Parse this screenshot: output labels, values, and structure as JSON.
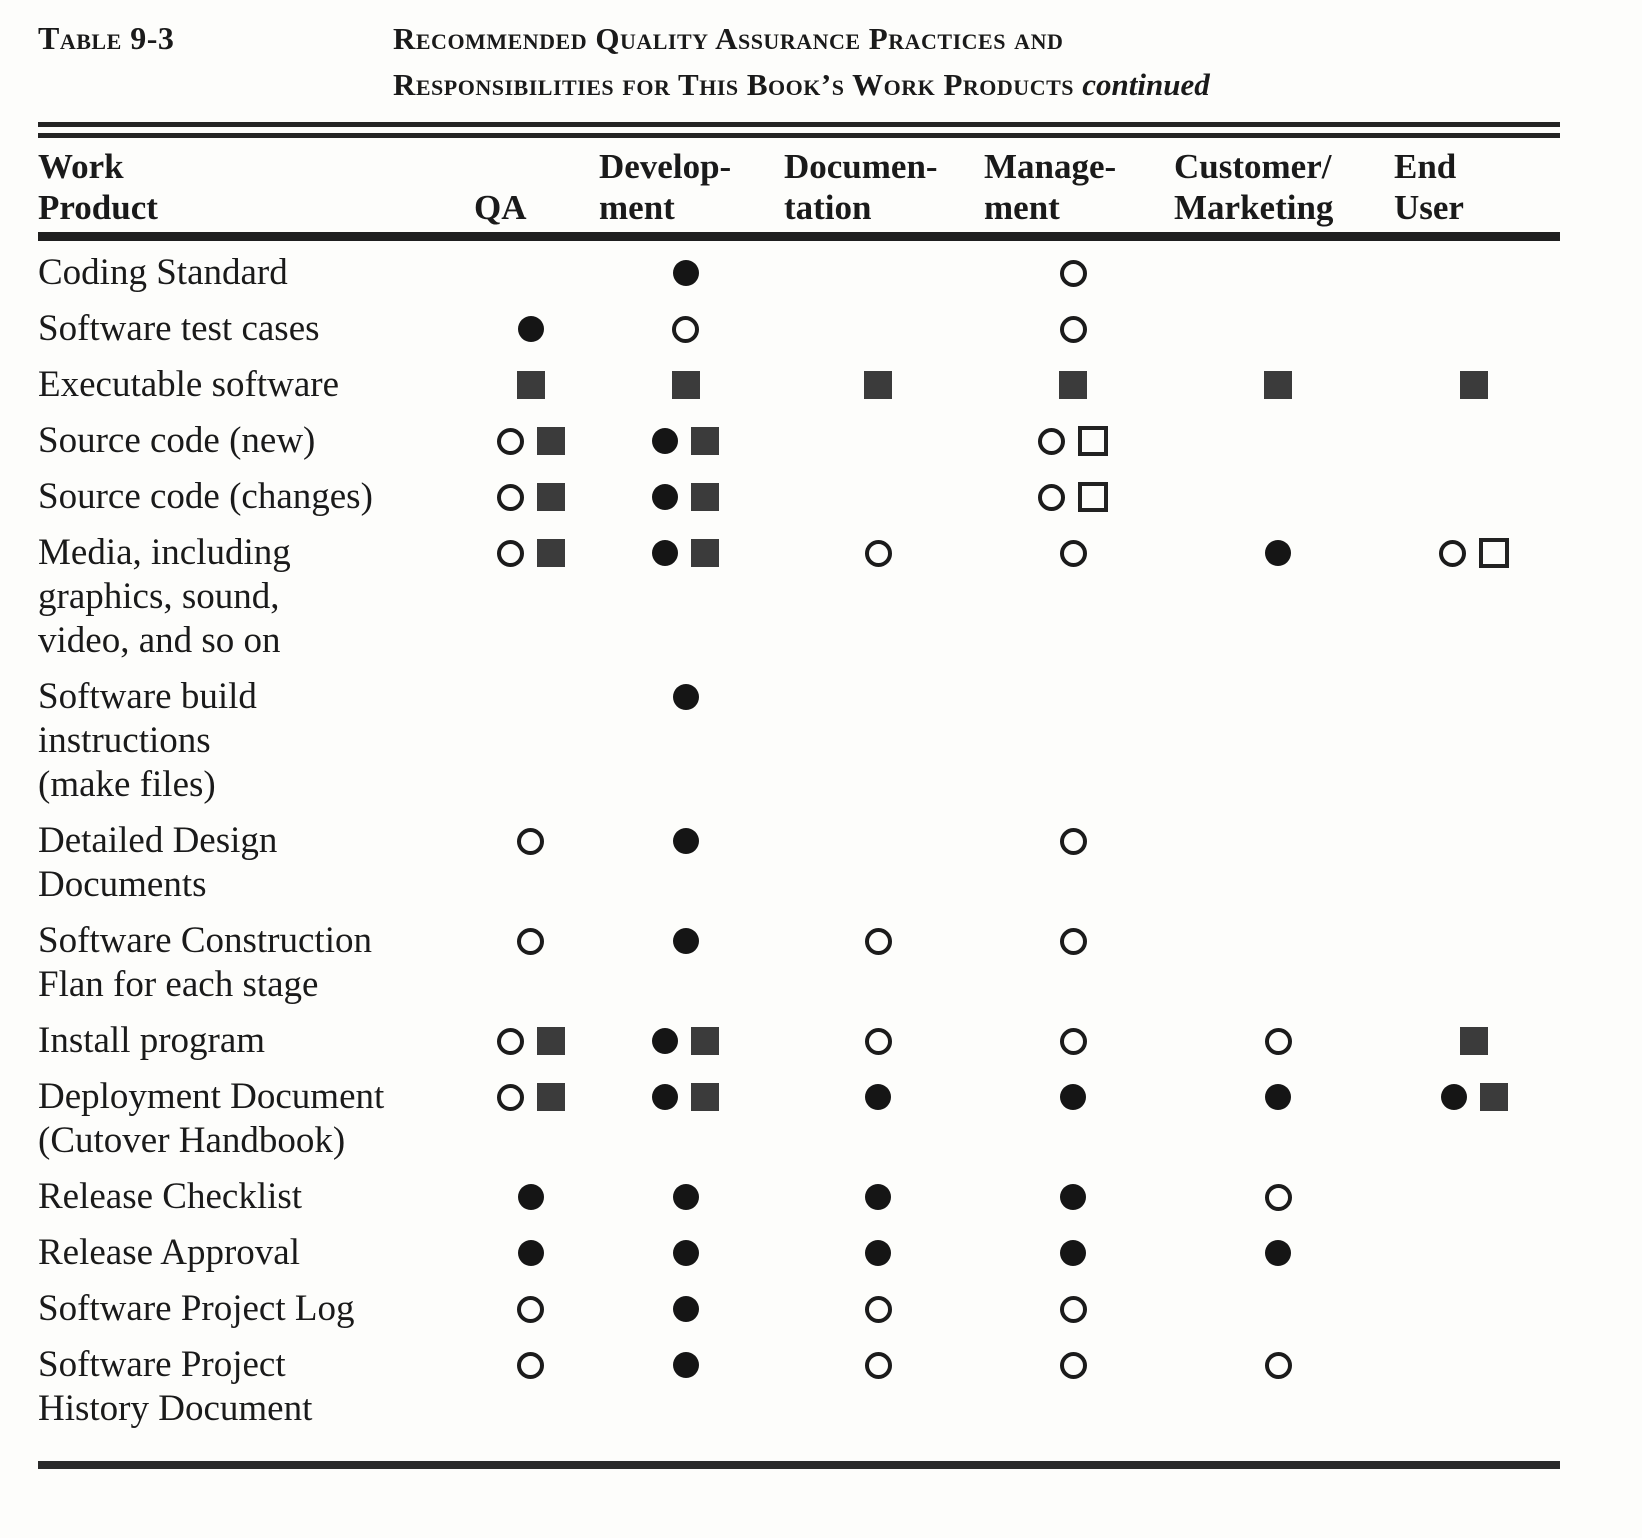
{
  "header": {
    "table_label": "Table 9-3",
    "title_line1": "Recommended Quality Assurance Practices and",
    "title_line2": "Responsibilities for This Book’s Work Products",
    "continued": "continued"
  },
  "colors": {
    "paper": "#fdfdfb",
    "ink": "#1a1a1a",
    "square_ink": "#3b3b3b"
  },
  "symbols": {
    "fc": "filled-circle",
    "oc": "open-circle",
    "fs": "filled-square",
    "os": "open-square"
  },
  "table": {
    "columns": [
      {
        "id": "work_product",
        "label_lines": [
          "Work",
          "Product"
        ]
      },
      {
        "id": "qa",
        "label_lines": [
          "QA"
        ]
      },
      {
        "id": "development",
        "label_lines": [
          "Develop-",
          "ment"
        ]
      },
      {
        "id": "documentation",
        "label_lines": [
          "Documen-",
          "tation"
        ]
      },
      {
        "id": "management",
        "label_lines": [
          "Manage-",
          "ment"
        ]
      },
      {
        "id": "customer_marketing",
        "label_lines": [
          "Customer/",
          "Marketing"
        ]
      },
      {
        "id": "end_user",
        "label_lines": [
          "End",
          "User"
        ]
      }
    ],
    "rows": [
      {
        "product_lines": [
          "Coding Standard"
        ],
        "marks": [
          [],
          [
            "fc"
          ],
          [],
          [
            "oc"
          ],
          [],
          []
        ]
      },
      {
        "product_lines": [
          "Software test cases"
        ],
        "marks": [
          [
            "fc"
          ],
          [
            "oc"
          ],
          [],
          [
            "oc"
          ],
          [],
          []
        ]
      },
      {
        "product_lines": [
          "Executable software"
        ],
        "marks": [
          [
            "fs"
          ],
          [
            "fs"
          ],
          [
            "fs"
          ],
          [
            "fs"
          ],
          [
            "fs"
          ],
          [
            "fs"
          ]
        ]
      },
      {
        "product_lines": [
          "Source code (new)"
        ],
        "marks": [
          [
            "oc",
            "fs"
          ],
          [
            "fc",
            "fs"
          ],
          [],
          [
            "oc",
            "os"
          ],
          [],
          []
        ]
      },
      {
        "product_lines": [
          "Source code (changes)"
        ],
        "marks": [
          [
            "oc",
            "fs"
          ],
          [
            "fc",
            "fs"
          ],
          [],
          [
            "oc",
            "os"
          ],
          [],
          []
        ]
      },
      {
        "product_lines": [
          "Media, including",
          "graphics, sound,",
          "video, and so on"
        ],
        "marks": [
          [
            "oc",
            "fs"
          ],
          [
            "fc",
            "fs"
          ],
          [
            "oc"
          ],
          [
            "oc"
          ],
          [
            "fc"
          ],
          [
            "oc",
            "os"
          ]
        ]
      },
      {
        "product_lines": [
          "Software build",
          "instructions",
          "(make files)"
        ],
        "marks": [
          [],
          [
            "fc"
          ],
          [],
          [],
          [],
          []
        ]
      },
      {
        "product_lines": [
          "Detailed Design",
          "Documents"
        ],
        "marks": [
          [
            "oc"
          ],
          [
            "fc"
          ],
          [],
          [
            "oc"
          ],
          [],
          []
        ]
      },
      {
        "product_lines": [
          "Software Construction",
          "Flan for each stage"
        ],
        "marks": [
          [
            "oc"
          ],
          [
            "fc"
          ],
          [
            "oc"
          ],
          [
            "oc"
          ],
          [],
          []
        ]
      },
      {
        "product_lines": [
          "Install program"
        ],
        "marks": [
          [
            "oc",
            "fs"
          ],
          [
            "fc",
            "fs"
          ],
          [
            "oc"
          ],
          [
            "oc"
          ],
          [
            "oc"
          ],
          [
            "fs"
          ]
        ]
      },
      {
        "product_lines": [
          "Deployment Document",
          "(Cutover Handbook)"
        ],
        "marks": [
          [
            "oc",
            "fs"
          ],
          [
            "fc",
            "fs"
          ],
          [
            "fc"
          ],
          [
            "fc"
          ],
          [
            "fc"
          ],
          [
            "fc",
            "fs"
          ]
        ]
      },
      {
        "product_lines": [
          "Release Checklist"
        ],
        "marks": [
          [
            "fc"
          ],
          [
            "fc"
          ],
          [
            "fc"
          ],
          [
            "fc"
          ],
          [
            "oc"
          ],
          []
        ]
      },
      {
        "product_lines": [
          "Release Approval"
        ],
        "marks": [
          [
            "fc"
          ],
          [
            "fc"
          ],
          [
            "fc"
          ],
          [
            "fc"
          ],
          [
            "fc"
          ],
          []
        ]
      },
      {
        "product_lines": [
          "Software Project Log"
        ],
        "marks": [
          [
            "oc"
          ],
          [
            "fc"
          ],
          [
            "oc"
          ],
          [
            "oc"
          ],
          [],
          []
        ]
      },
      {
        "product_lines": [
          "Software Project",
          "History Document"
        ],
        "marks": [
          [
            "oc"
          ],
          [
            "fc"
          ],
          [
            "oc"
          ],
          [
            "oc"
          ],
          [
            "oc"
          ],
          []
        ]
      }
    ]
  }
}
